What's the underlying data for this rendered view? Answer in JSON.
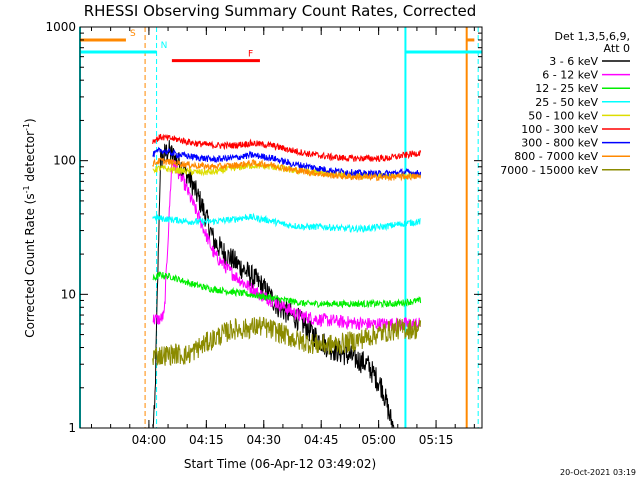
{
  "chart_data": {
    "type": "line",
    "title": "RHESSI Observing Summary Count Rates, Corrected",
    "xlabel": "Start Time (06-Apr-12 03:49:02)",
    "ylabel_main": "Corrected Count Rate (s",
    "ylabel_sup1": "-1",
    "ylabel_mid": " detector",
    "ylabel_sup2": "-1",
    "ylabel_end": ")",
    "x_unit": "minutes after 03:49:02",
    "xlim": [
      -7,
      98
    ],
    "ylim": [
      1,
      1000
    ],
    "yscale": "log",
    "x_ticks": [
      {
        "label": "04:00",
        "value": 11
      },
      {
        "label": "04:15",
        "value": 26
      },
      {
        "label": "04:30",
        "value": 41
      },
      {
        "label": "04:45",
        "value": 56
      },
      {
        "label": "05:00",
        "value": 71
      },
      {
        "label": "05:15",
        "value": 86
      }
    ],
    "y_ticks": [
      {
        "label": "1",
        "value": 1
      },
      {
        "label": "10",
        "value": 10
      },
      {
        "label": "100",
        "value": 100
      },
      {
        "label": "1000",
        "value": 1000
      }
    ],
    "legend": {
      "header1": "Det 1,3,5,6,9,",
      "header2": "Att 0",
      "placement": "right"
    },
    "series": [
      {
        "name": "3 - 6 keV",
        "color": "#000000",
        "points": [
          [
            12,
            1
          ],
          [
            12.5,
            1.3
          ],
          [
            14,
            100
          ],
          [
            16,
            120
          ],
          [
            19,
            95
          ],
          [
            22,
            70
          ],
          [
            25,
            45
          ],
          [
            28,
            25
          ],
          [
            31,
            20
          ],
          [
            35,
            16
          ],
          [
            40,
            12
          ],
          [
            45,
            8
          ],
          [
            50,
            6.5
          ],
          [
            54,
            5
          ],
          [
            58,
            4
          ],
          [
            63,
            3.5
          ],
          [
            68,
            3
          ],
          [
            72,
            2
          ],
          [
            74,
            1.2
          ],
          [
            75,
            1
          ]
        ]
      },
      {
        "name": "6 - 12 keV",
        "color": "#ff00ff",
        "points": [
          [
            12,
            6.5
          ],
          [
            14,
            6.5
          ],
          [
            15,
            7
          ],
          [
            17,
            100
          ],
          [
            20,
            70
          ],
          [
            24,
            38
          ],
          [
            28,
            20
          ],
          [
            32,
            15
          ],
          [
            36,
            12
          ],
          [
            40,
            10
          ],
          [
            45,
            8.5
          ],
          [
            50,
            7
          ],
          [
            55,
            6.5
          ],
          [
            62,
            6.2
          ],
          [
            68,
            6
          ],
          [
            75,
            6
          ],
          [
            82,
            6
          ]
        ]
      },
      {
        "name": "12 - 25 keV",
        "color": "#00ee00",
        "points": [
          [
            12,
            13
          ],
          [
            14,
            14
          ],
          [
            17,
            13.5
          ],
          [
            22,
            12
          ],
          [
            27,
            11
          ],
          [
            32,
            10.5
          ],
          [
            37,
            10
          ],
          [
            42,
            9.5
          ],
          [
            47,
            9
          ],
          [
            52,
            8.5
          ],
          [
            57,
            8.5
          ],
          [
            62,
            8.5
          ],
          [
            68,
            8.5
          ],
          [
            75,
            8.5
          ],
          [
            82,
            9
          ]
        ]
      },
      {
        "name": "25 - 50 keV",
        "color": "#00ffff",
        "points": [
          [
            12,
            38
          ],
          [
            14,
            37
          ],
          [
            18,
            36
          ],
          [
            22,
            35
          ],
          [
            27,
            35
          ],
          [
            32,
            36
          ],
          [
            37,
            38
          ],
          [
            42,
            36
          ],
          [
            47,
            33
          ],
          [
            52,
            32
          ],
          [
            57,
            32
          ],
          [
            62,
            31
          ],
          [
            67,
            31
          ],
          [
            72,
            32
          ],
          [
            78,
            34
          ],
          [
            82,
            35
          ]
        ]
      },
      {
        "name": "50 - 100 keV",
        "color": "#dddd00",
        "points": [
          [
            12,
            85
          ],
          [
            14,
            88
          ],
          [
            18,
            85
          ],
          [
            23,
            82
          ],
          [
            28,
            82
          ],
          [
            33,
            88
          ],
          [
            38,
            92
          ],
          [
            43,
            90
          ],
          [
            48,
            85
          ],
          [
            53,
            82
          ],
          [
            58,
            80
          ],
          [
            63,
            78
          ],
          [
            68,
            77
          ],
          [
            73,
            77
          ],
          [
            78,
            78
          ],
          [
            82,
            79
          ]
        ]
      },
      {
        "name": "100 - 300 keV",
        "color": "#ff0000",
        "points": [
          [
            12,
            140
          ],
          [
            14,
            150
          ],
          [
            18,
            145
          ],
          [
            23,
            135
          ],
          [
            28,
            130
          ],
          [
            33,
            130
          ],
          [
            38,
            135
          ],
          [
            43,
            130
          ],
          [
            48,
            120
          ],
          [
            53,
            112
          ],
          [
            58,
            107
          ],
          [
            63,
            104
          ],
          [
            68,
            104
          ],
          [
            73,
            104
          ],
          [
            78,
            110
          ],
          [
            82,
            115
          ]
        ]
      },
      {
        "name": "300 - 800 keV",
        "color": "#0000ff",
        "points": [
          [
            12,
            110
          ],
          [
            14,
            120
          ],
          [
            18,
            112
          ],
          [
            23,
            106
          ],
          [
            28,
            102
          ],
          [
            33,
            105
          ],
          [
            38,
            110
          ],
          [
            43,
            105
          ],
          [
            48,
            95
          ],
          [
            53,
            90
          ],
          [
            58,
            85
          ],
          [
            63,
            82
          ],
          [
            68,
            80
          ],
          [
            73,
            80
          ],
          [
            78,
            82
          ],
          [
            82,
            80
          ]
        ]
      },
      {
        "name": "800 - 7000 keV",
        "color": "#ff8800",
        "points": [
          [
            12,
            95
          ],
          [
            14,
            100
          ],
          [
            18,
            96
          ],
          [
            23,
            92
          ],
          [
            28,
            90
          ],
          [
            33,
            92
          ],
          [
            38,
            96
          ],
          [
            43,
            93
          ],
          [
            48,
            86
          ],
          [
            53,
            82
          ],
          [
            58,
            78
          ],
          [
            63,
            76
          ],
          [
            68,
            75
          ],
          [
            73,
            75
          ],
          [
            78,
            76
          ],
          [
            82,
            76
          ]
        ]
      },
      {
        "name": "7000 - 15000 keV",
        "color": "#8b8b00",
        "points": [
          [
            12,
            3.5
          ],
          [
            15,
            3.5
          ],
          [
            18,
            3.6
          ],
          [
            21,
            3.5
          ],
          [
            24,
            4
          ],
          [
            27,
            4.5
          ],
          [
            30,
            5
          ],
          [
            33,
            5.5
          ],
          [
            36,
            5.5
          ],
          [
            40,
            5.8
          ],
          [
            45,
            5.2
          ],
          [
            50,
            4.5
          ],
          [
            55,
            4.2
          ],
          [
            60,
            4.2
          ],
          [
            65,
            4.5
          ],
          [
            70,
            5
          ],
          [
            76,
            5.5
          ],
          [
            82,
            5.5
          ]
        ]
      }
    ],
    "flags": [
      {
        "label": "S",
        "color": "#ff8800",
        "y": 800,
        "segments": [
          [
            -7,
            5
          ],
          [
            94,
            96
          ]
        ]
      },
      {
        "label": "N",
        "color": "#00ffff",
        "y": 650,
        "segments": [
          [
            -7,
            13
          ],
          [
            78,
            98
          ]
        ]
      },
      {
        "label": "F",
        "color": "#ff0000",
        "y": 560,
        "segments": [
          [
            17,
            40
          ]
        ]
      }
    ],
    "vlines": [
      {
        "color": "#ff8800",
        "style": "dashed",
        "x": 10
      },
      {
        "color": "#00ffff",
        "style": "dashed",
        "x": 13
      },
      {
        "color": "#00ffff",
        "style": "dashed",
        "x": 97
      },
      {
        "color": "#00ffff",
        "style": "solid",
        "x": -7
      },
      {
        "color": "#00ffff",
        "style": "solid",
        "x": 78
      },
      {
        "color": "#ff8800",
        "style": "solid",
        "x": 94
      }
    ]
  },
  "footer_stamp": "20-Oct-2021 03:19"
}
